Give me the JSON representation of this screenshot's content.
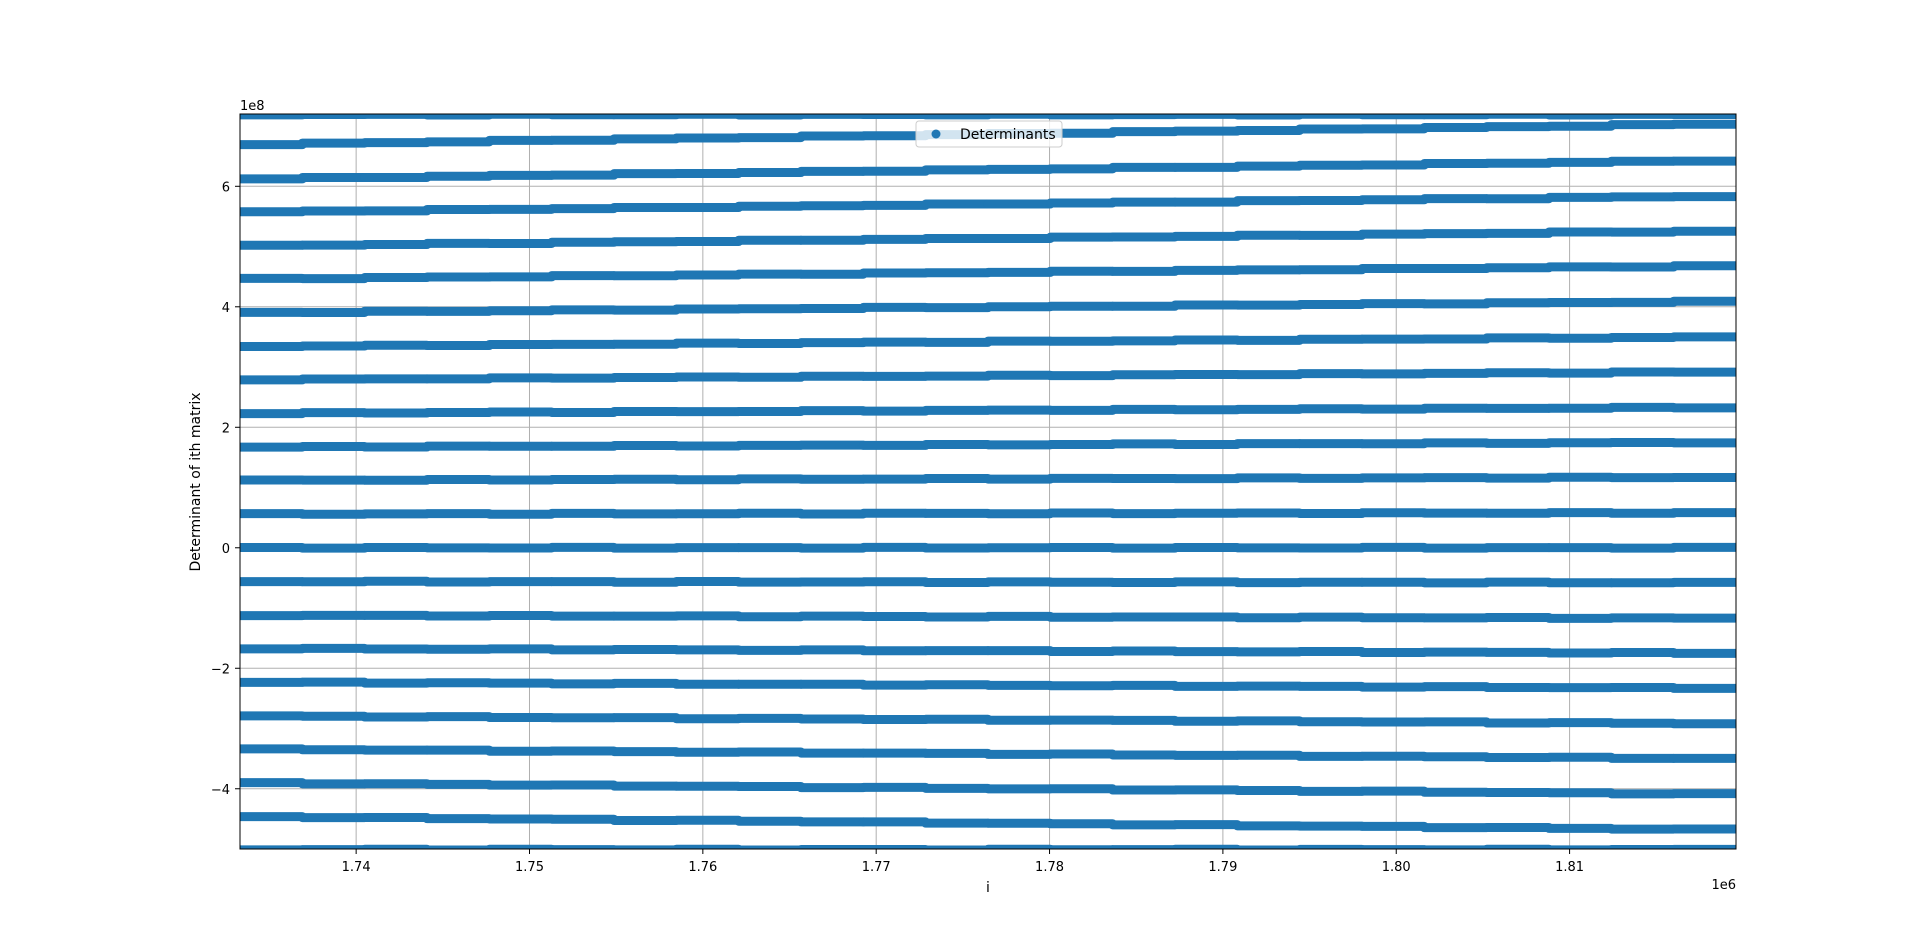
{
  "chart_data": {
    "type": "scatter",
    "title": "",
    "xlabel": "i",
    "ylabel": "Determinant of ith matrix",
    "x_offset_label": "1e6",
    "y_offset_label": "1e8",
    "xlim": [
      1.7333,
      1.8196
    ],
    "ylim": [
      -5.0,
      7.2
    ],
    "x_ticks": [
      1.74,
      1.75,
      1.76,
      1.77,
      1.78,
      1.79,
      1.8,
      1.81
    ],
    "x_tick_labels": [
      "1.74",
      "1.75",
      "1.76",
      "1.77",
      "1.78",
      "1.79",
      "1.80",
      "1.81"
    ],
    "y_ticks": [
      -4,
      -2,
      0,
      2,
      4,
      6
    ],
    "y_tick_labels": [
      "−4",
      "−2",
      "0",
      "2",
      "4",
      "6"
    ],
    "grid": true,
    "legend": {
      "position": "upper center",
      "entries": [
        "Determinants"
      ]
    },
    "colors": {
      "series": "#1f77b4",
      "grid": "#b0b0b0"
    },
    "series": [
      {
        "name": "Determinants",
        "marker": "o",
        "bands": [
          {
            "y_start": 7.19,
            "y_end": 7.19
          },
          {
            "y_start": 6.69,
            "y_end": 7.04
          },
          {
            "y_start": 6.12,
            "y_end": 6.43
          },
          {
            "y_start": 5.57,
            "y_end": 5.84
          },
          {
            "y_start": 5.01,
            "y_end": 5.26
          },
          {
            "y_start": 4.46,
            "y_end": 4.68
          },
          {
            "y_start": 3.9,
            "y_end": 4.09
          },
          {
            "y_start": 3.34,
            "y_end": 3.5
          },
          {
            "y_start": 2.79,
            "y_end": 2.92
          },
          {
            "y_start": 2.23,
            "y_end": 2.33
          },
          {
            "y_start": 1.67,
            "y_end": 1.75
          },
          {
            "y_start": 1.12,
            "y_end": 1.17
          },
          {
            "y_start": 0.56,
            "y_end": 0.58
          },
          {
            "y_start": 0.0,
            "y_end": 0.0
          },
          {
            "y_start": -0.56,
            "y_end": -0.58
          },
          {
            "y_start": -1.12,
            "y_end": -1.17
          },
          {
            "y_start": -1.67,
            "y_end": -1.75
          },
          {
            "y_start": -2.23,
            "y_end": -2.33
          },
          {
            "y_start": -2.79,
            "y_end": -2.92
          },
          {
            "y_start": -3.34,
            "y_end": -3.5
          },
          {
            "y_start": -3.9,
            "y_end": -4.09
          },
          {
            "y_start": -4.46,
            "y_end": -4.68
          },
          {
            "y_start": -5.01,
            "y_end": -5.01
          }
        ]
      }
    ]
  }
}
